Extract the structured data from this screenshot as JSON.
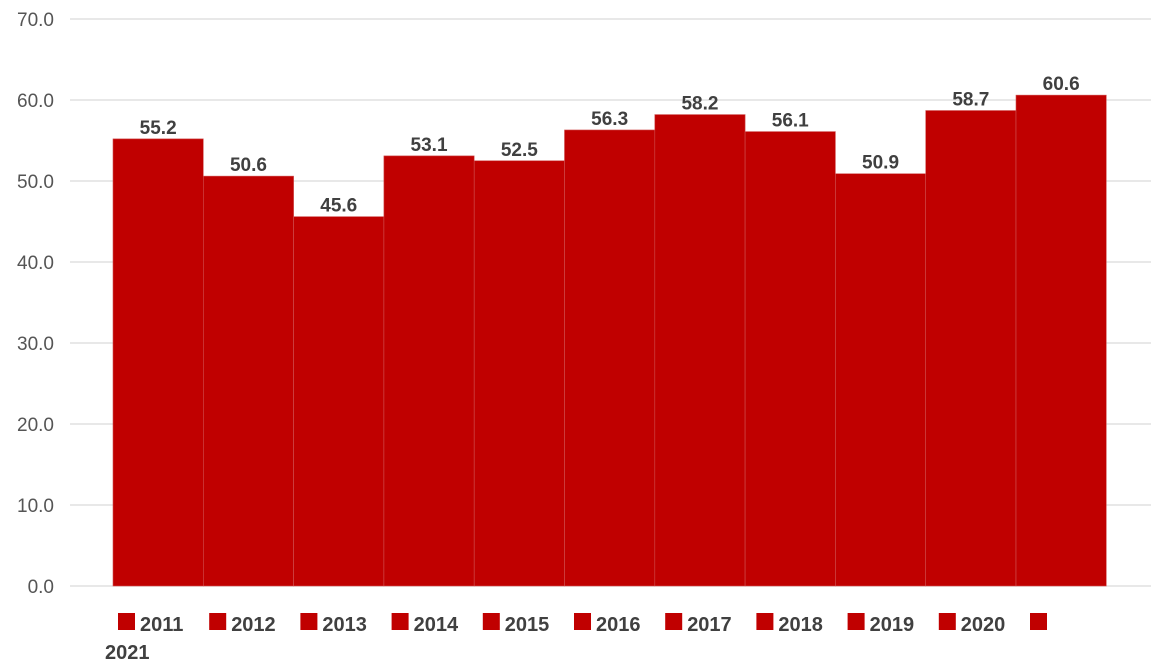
{
  "chart_data": {
    "type": "bar",
    "categories": [
      "2011",
      "2012",
      "2013",
      "2014",
      "2015",
      "2016",
      "2017",
      "2018",
      "2019",
      "2020",
      "2021"
    ],
    "values": [
      55.2,
      50.6,
      45.6,
      53.1,
      52.5,
      56.3,
      58.2,
      56.1,
      50.9,
      58.7,
      60.6
    ],
    "data_labels": [
      "55.2",
      "50.6",
      "45.6",
      "53.1",
      "52.5",
      "56.3",
      "58.2",
      "56.1",
      "50.9",
      "58.7",
      "60.6"
    ],
    "y_ticks": [
      "0.0",
      "10.0",
      "20.0",
      "30.0",
      "40.0",
      "50.0",
      "60.0",
      "70.0"
    ],
    "ylim": [
      0,
      70
    ],
    "grid": true,
    "legend_position": "bottom",
    "bar_color": "#C00000",
    "title": "",
    "xlabel": "",
    "ylabel": ""
  }
}
